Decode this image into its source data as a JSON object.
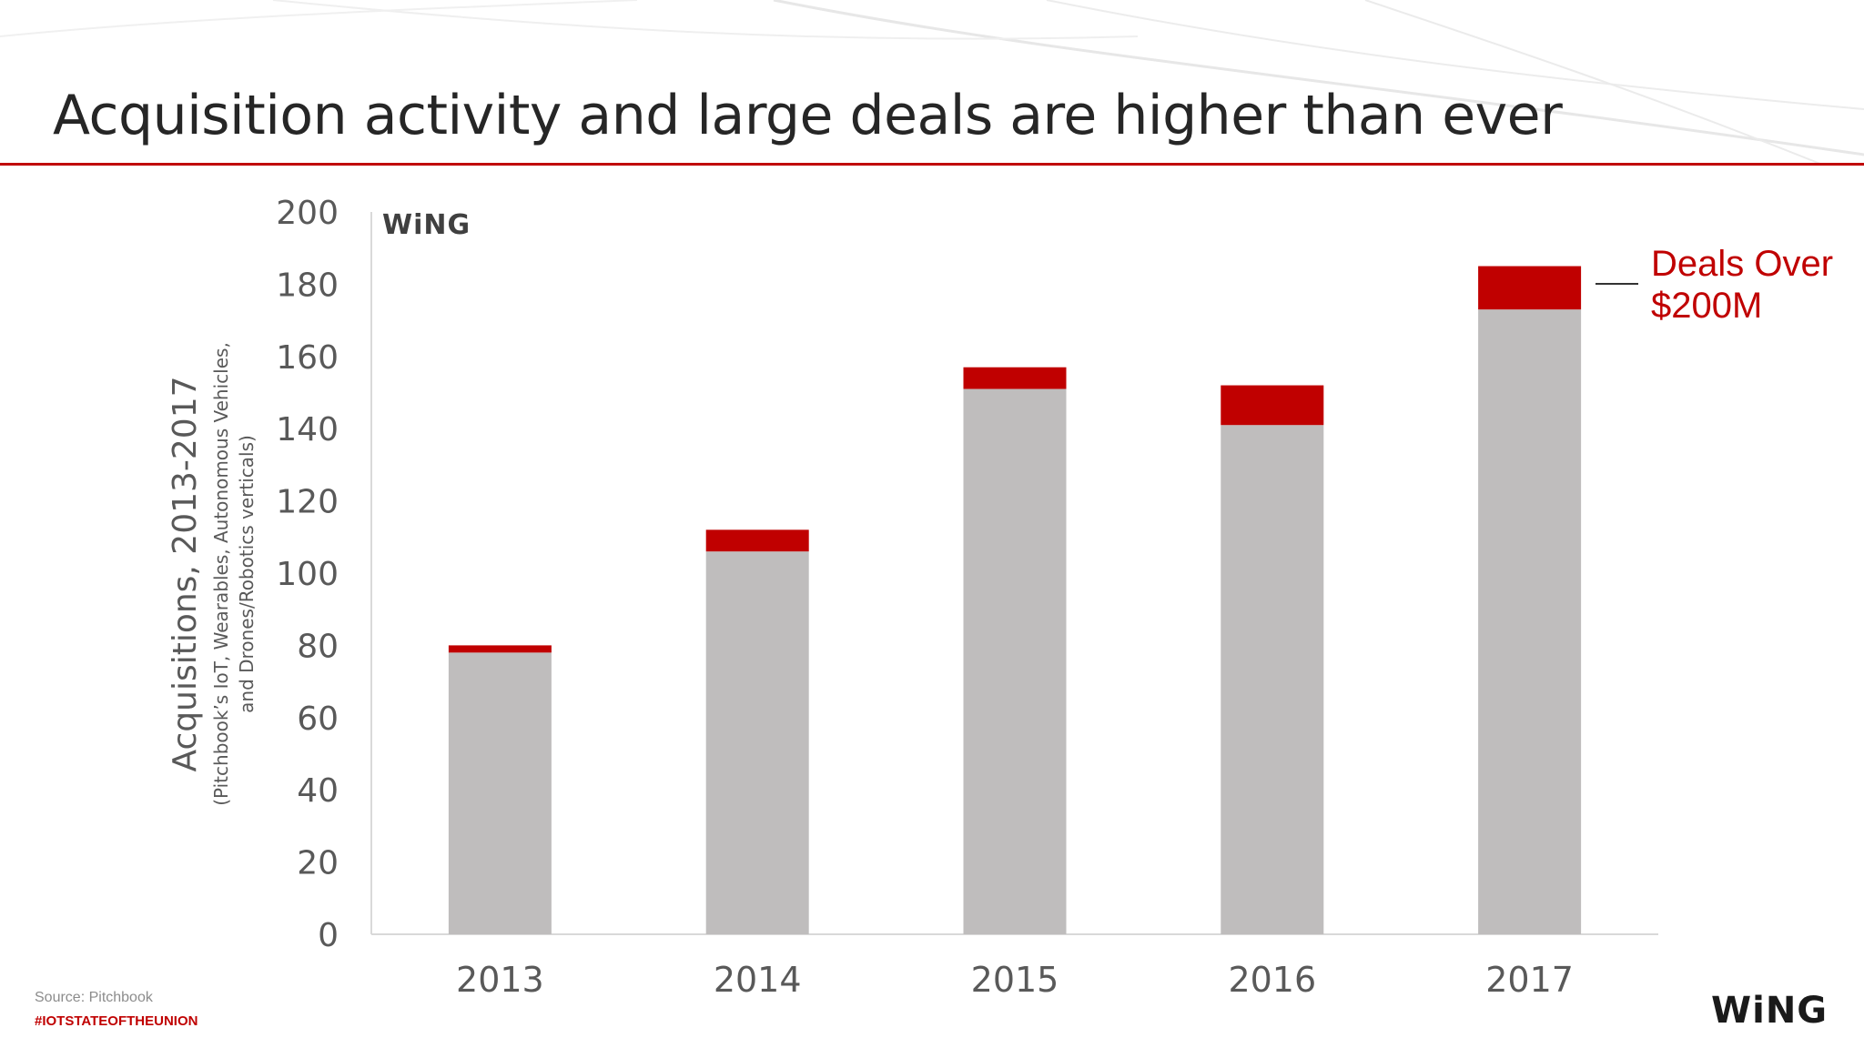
{
  "slide": {
    "title": "Acquisition activity and large deals are higher than ever",
    "source": "Source: Pitchbook",
    "hashtag": "#IOTSTATEOFTHEUNION",
    "logo": "WiNG"
  },
  "colors": {
    "accent": "#c00000",
    "bar_base": "#bfbdbd",
    "text": "#595959"
  },
  "chart_data": {
    "type": "bar",
    "stacked": true,
    "categories": [
      "2013",
      "2014",
      "2015",
      "2016",
      "2017"
    ],
    "series": [
      {
        "values": [
          78,
          106,
          151,
          141,
          173
        ],
        "color": "#bfbdbd"
      },
      {
        "name": "Deals Over $200M",
        "values": [
          2,
          6,
          6,
          11,
          12
        ],
        "color": "#c00000"
      }
    ],
    "title": "",
    "ylabel": "Acquisitions, 2013-2017",
    "ylabel_sub_lines": [
      "(Pitchbook’s IoT, Wearables, Autonomous Vehicles,",
      "and Drones/Robotics verticals)"
    ],
    "ylim": [
      0,
      200
    ],
    "yticks": [
      0,
      20,
      40,
      60,
      80,
      100,
      120,
      140,
      160,
      180,
      200
    ],
    "legend_lines": [
      "Deals Over",
      "$200M"
    ],
    "legend_position": "right",
    "watermark": "WiNG",
    "grid": false
  }
}
